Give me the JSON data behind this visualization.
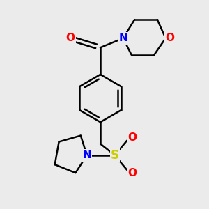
{
  "bg_color": "#ebebeb",
  "bond_color": "#000000",
  "atom_colors": {
    "O": "#ff0000",
    "N": "#0000ff",
    "S": "#cccc00"
  },
  "line_width": 1.8,
  "figsize": [
    3.0,
    3.0
  ],
  "dpi": 100
}
